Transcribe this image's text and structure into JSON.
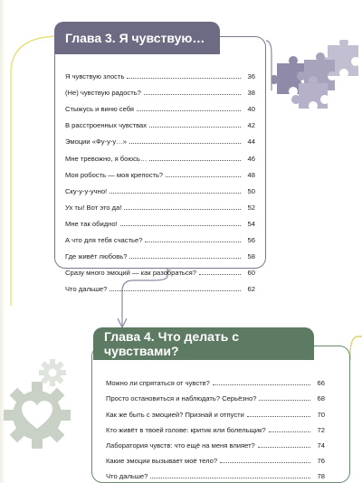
{
  "chapter3": {
    "title": "Глава 3. Я чувствую…",
    "entries": [
      {
        "title": "Я чувствую злость",
        "page": "36"
      },
      {
        "title": "(Не) чувствую радость?",
        "page": "38"
      },
      {
        "title": "Стыжусь и виню себя",
        "page": "40"
      },
      {
        "title": "В расстроенных чувствах",
        "page": "42"
      },
      {
        "title": "Эмоции «Фу-у-у…»",
        "page": "44"
      },
      {
        "title": "Мне тревожно, я боюсь…",
        "page": "46"
      },
      {
        "title": "Моя робость — моя крепость?",
        "page": "48"
      },
      {
        "title": "Ску-у-у-учно!",
        "page": "50"
      },
      {
        "title": "Ух ты! Вот это да!",
        "page": "52"
      },
      {
        "title": "Мне так обидно!",
        "page": "54"
      },
      {
        "title": "А что для тебя счастье?",
        "page": "56"
      },
      {
        "title": "Где живёт любовь?",
        "page": "58"
      },
      {
        "title": "Сразу много эмоций — как разобраться?",
        "page": "60"
      },
      {
        "title": "Что дальше?",
        "page": "62"
      }
    ]
  },
  "chapter4": {
    "title": "Глава 4. Что делать с чувствами?",
    "entries": [
      {
        "title": "Можно ли спрятаться от чувств?",
        "page": "66"
      },
      {
        "title": "Просто остановиться и наблюдать? Серьёзно?",
        "page": "68"
      },
      {
        "title": "Как же быть с эмоцией? Признай и отпусти",
        "page": "70"
      },
      {
        "title": "Кто живёт в твоей голове: критик или болельщик?",
        "page": "72"
      },
      {
        "title": "Лаборатория чувств: что ещё на меня влияет?",
        "page": "74"
      },
      {
        "title": "Какие эмоции вызывает моё тело?",
        "page": "76"
      },
      {
        "title": "Что дальше?",
        "page": "78"
      }
    ]
  },
  "colors": {
    "chapter3_accent": "#6d6b84",
    "chapter4_accent": "#5c7b62",
    "puzzle": "#b8b3c9",
    "gear": "#cfd6cc",
    "connector_yellow": "#e8e07a"
  },
  "icons": [
    "puzzle-icon",
    "gear-heart-icon",
    "gear-icon"
  ]
}
